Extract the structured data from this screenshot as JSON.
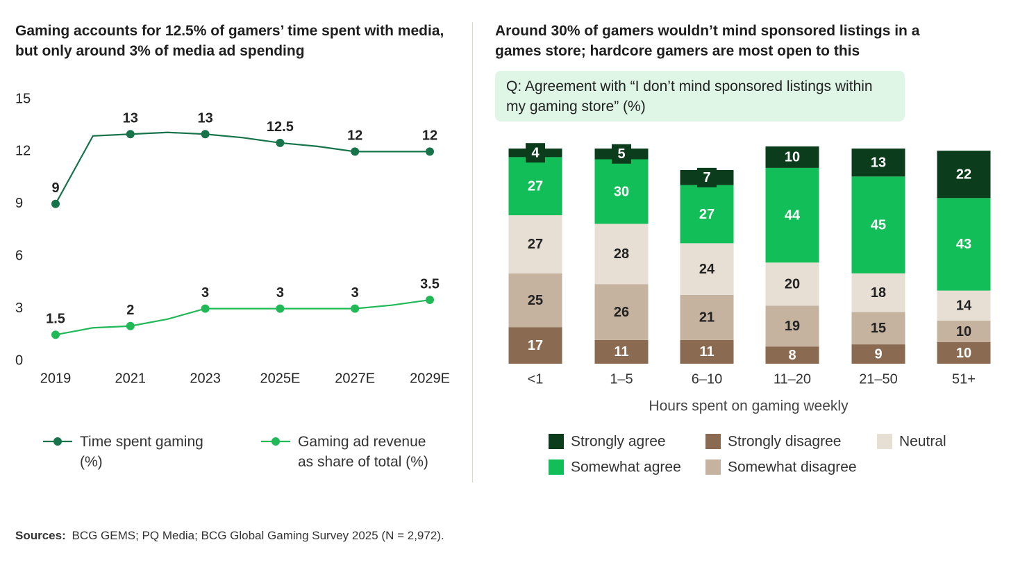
{
  "chart_data": [
    {
      "type": "line",
      "title": "Gaming accounts for 12.5% of gamers’ time spent with media, but only around 3% of media ad spending",
      "categories": [
        "2019",
        null,
        "2021",
        null,
        "2023",
        null,
        "2025E",
        null,
        "2027E",
        null,
        "2029E"
      ],
      "series": [
        {
          "name": "Time spent gaming (%)",
          "color": "#17744a",
          "values": [
            9,
            12.9,
            13,
            13.1,
            13,
            12.8,
            12.5,
            12.3,
            12,
            12,
            12
          ]
        },
        {
          "name": "Gaming ad revenue as share of total (%)",
          "color": "#21b957",
          "values": [
            1.5,
            1.9,
            2,
            2.4,
            3,
            3,
            3,
            3,
            3,
            3.2,
            3.5
          ]
        }
      ],
      "ylim": [
        0,
        15
      ],
      "yticks": [
        0,
        3,
        6,
        9,
        12,
        15
      ]
    },
    {
      "type": "bar",
      "stacked": true,
      "title": "Around 30% of gamers wouldn’t mind sponsored listings in a games store; hardcore gamers are most open to this",
      "question": "Q: Agreement with “I don’t mind sponsored listings within my gaming store” (%)",
      "x_label": "Hours spent on gaming weekly",
      "categories": [
        "<1",
        "1–5",
        "6–10",
        "11–20",
        "21–50",
        "51+"
      ],
      "series": [
        {
          "name": "Strongly disagree",
          "color": "#8a6a50",
          "values": [
            17,
            11,
            11,
            8,
            9,
            10
          ]
        },
        {
          "name": "Somewhat disagree",
          "color": "#c5b3a0",
          "values": [
            25,
            26,
            21,
            19,
            15,
            10
          ]
        },
        {
          "name": "Neutral",
          "color": "#e7ded4",
          "values": [
            27,
            28,
            24,
            20,
            18,
            14
          ]
        },
        {
          "name": "Somewhat agree",
          "color": "#12be57",
          "values": [
            27,
            30,
            27,
            44,
            45,
            43
          ]
        },
        {
          "name": "Strongly agree",
          "color": "#0b3d1d",
          "values": [
            4,
            5,
            7,
            10,
            13,
            22
          ]
        }
      ],
      "ylim": [
        0,
        100
      ]
    }
  ],
  "sources": {
    "label": "Sources:",
    "text": "BCG GEMS; PQ Media; BCG Global Gaming Survey 2025 (N = 2,972)."
  }
}
